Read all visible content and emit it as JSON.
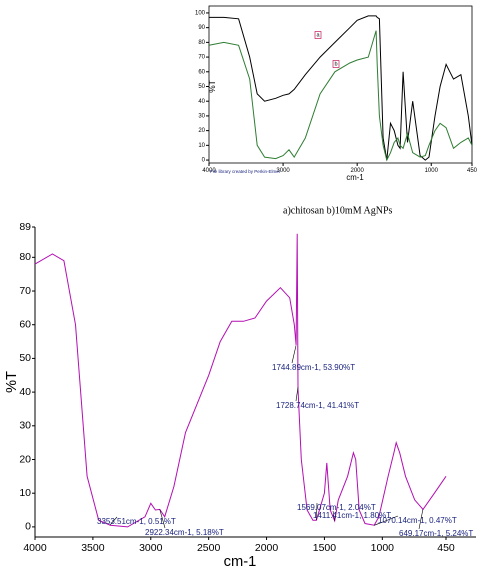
{
  "chart_data": [
    {
      "type": "line",
      "ylabel": "%T",
      "xlabel": "cm-1",
      "footer": "File library created by Perkin-Elmer",
      "caption": "a)chitosan   b)10mM AgNPs",
      "x": [
        4000,
        3800,
        3600,
        3450,
        3350,
        3250,
        3100,
        3000,
        2920,
        2850,
        2700,
        2500,
        2300,
        2100,
        2000,
        1850,
        1745,
        1730,
        1700,
        1650,
        1600,
        1550,
        1500,
        1450,
        1420,
        1380,
        1320,
        1250,
        1150,
        1080,
        1030,
        950,
        880,
        800,
        700,
        600,
        500,
        450
      ],
      "series": [
        {
          "name": "a",
          "color": "#000000",
          "values": [
            97,
            97,
            96,
            70,
            45,
            40,
            42,
            44,
            45,
            48,
            58,
            70,
            80,
            90,
            95,
            98,
            98,
            97,
            96,
            15,
            0,
            25,
            20,
            10,
            8,
            60,
            12,
            40,
            3,
            0,
            2,
            30,
            50,
            65,
            55,
            58,
            30,
            10
          ]
        },
        {
          "name": "b",
          "color": "#2e7d32",
          "values": [
            78,
            80,
            78,
            55,
            10,
            2,
            1,
            3,
            7,
            2,
            15,
            45,
            60,
            66,
            68,
            70,
            88,
            65,
            30,
            10,
            0,
            5,
            12,
            15,
            10,
            8,
            18,
            5,
            2,
            3,
            10,
            20,
            25,
            22,
            8,
            12,
            15,
            10
          ]
        }
      ],
      "xlim": [
        4000,
        450
      ],
      "xticks": [
        4000,
        3000,
        2000,
        1000,
        450
      ],
      "ylim": [
        -2,
        102
      ],
      "yticks": [
        0,
        10,
        20,
        30,
        40,
        50,
        60,
        70,
        80,
        90,
        100
      ]
    },
    {
      "type": "line",
      "ylabel": "%T",
      "xlabel": "cm-1",
      "x": [
        4000,
        3850,
        3750,
        3650,
        3550,
        3450,
        3350,
        3200,
        3050,
        3000,
        2960,
        2922,
        2880,
        2800,
        2700,
        2500,
        2400,
        2300,
        2200,
        2100,
        2000,
        1880,
        1800,
        1760,
        1745,
        1735,
        1728,
        1700,
        1650,
        1600,
        1569,
        1500,
        1480,
        1450,
        1411,
        1380,
        1300,
        1250,
        1230,
        1200,
        1150,
        1070,
        1030,
        950,
        900,
        880,
        850,
        800,
        720,
        649,
        550,
        450
      ],
      "series": [
        {
          "name": "sample",
          "color": "#b30fb3",
          "values": [
            78,
            81,
            79,
            60,
            15,
            2,
            0.5,
            0,
            3,
            7,
            5,
            5.2,
            3,
            12,
            28,
            45,
            55,
            61,
            61,
            62,
            67,
            71,
            68,
            60,
            54,
            87,
            41,
            20,
            5,
            2,
            2,
            10,
            19,
            5,
            1.8,
            8,
            15,
            22,
            20,
            5,
            1,
            0.5,
            3,
            15,
            22,
            25,
            22,
            15,
            8,
            5.2,
            10,
            15
          ]
        }
      ],
      "annotations": [
        {
          "text": "1744.89cm-1, 53.90%T",
          "x": 1744.89,
          "y": 53.9
        },
        {
          "text": "1728.74cm-1, 41.41%T",
          "x": 1728.74,
          "y": 41.41
        },
        {
          "text": "3353.51cm-1, 0.51%T",
          "x": 3353.51,
          "y": 0.51
        },
        {
          "text": "2922.34cm-1, 5.18%T",
          "x": 2922.34,
          "y": 5.18
        },
        {
          "text": "1569.07cm-1, 2.04%T",
          "x": 1569.07,
          "y": 2.04
        },
        {
          "text": "1411.41cm-1, 1.80%T",
          "x": 1411.41,
          "y": 1.8
        },
        {
          "text": "1070.14cm-1, 0.47%T",
          "x": 1070.14,
          "y": 0.47
        },
        {
          "text": "649.17cm-1, 5.24%T",
          "x": 649.17,
          "y": 5.24
        }
      ],
      "xlim": [
        4000,
        450
      ],
      "xticks": [
        4000,
        3500,
        3000,
        2500,
        2000,
        1500,
        1000,
        450
      ],
      "ylim": [
        -3,
        89
      ],
      "yticks": [
        0,
        10,
        20,
        30,
        40,
        50,
        60,
        70,
        80,
        89
      ]
    }
  ]
}
